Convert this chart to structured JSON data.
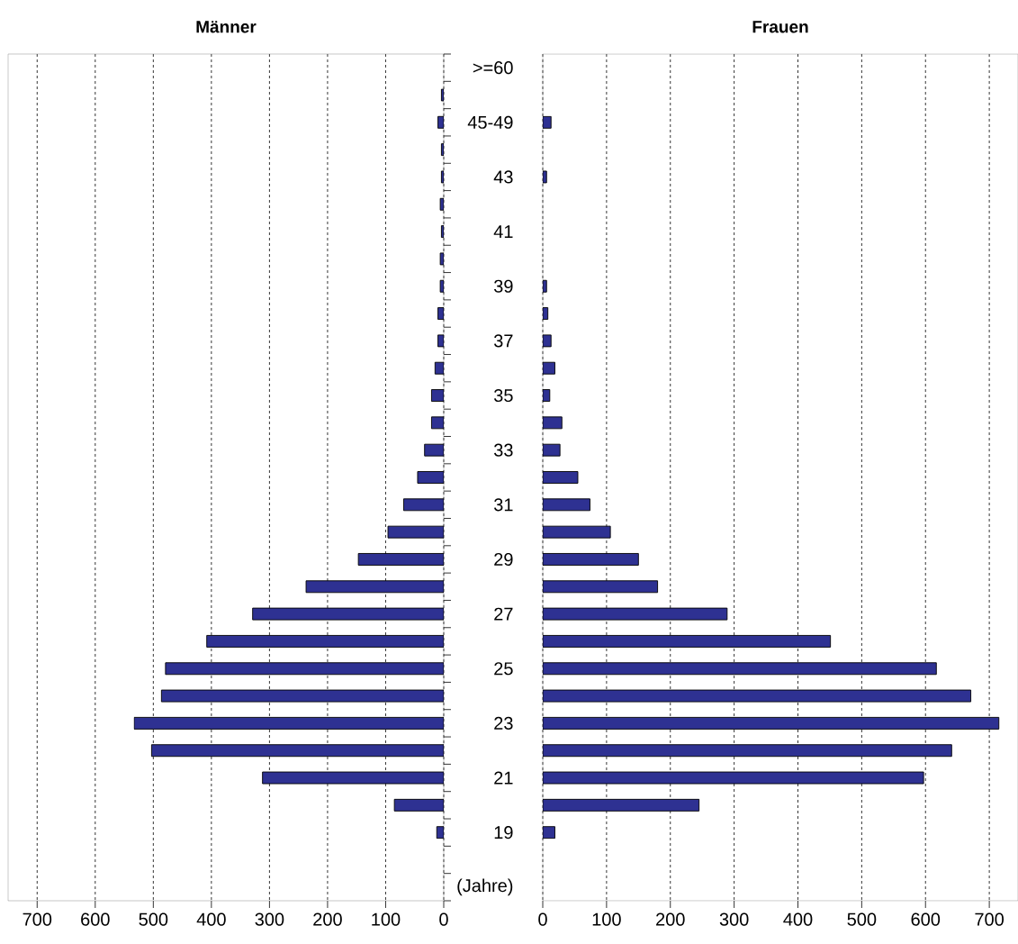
{
  "chart_data": [
    {
      "type": "bar",
      "orientation": "horizontal",
      "title": "Männer",
      "categories": [
        ">=60",
        null,
        "45-49",
        null,
        "43",
        null,
        "41",
        null,
        "39",
        null,
        "37",
        null,
        "35",
        null,
        "33",
        null,
        "31",
        null,
        "29",
        null,
        "27",
        null,
        "25",
        null,
        "23",
        null,
        "21",
        null,
        "19",
        null,
        "(Jahre)"
      ],
      "values": [
        null,
        4,
        10,
        4,
        4,
        6,
        4,
        6,
        6,
        10,
        10,
        15,
        21,
        21,
        33,
        45,
        69,
        96,
        147,
        237,
        329,
        408,
        479,
        486,
        533,
        503,
        312,
        85,
        12,
        null,
        null
      ],
      "color": "#2e3192",
      "xlim": [
        750,
        0
      ],
      "xticks": [
        0,
        100,
        200,
        300,
        400,
        500,
        600,
        700
      ],
      "grid": "x"
    },
    {
      "type": "bar",
      "orientation": "horizontal",
      "title": "Frauen",
      "values": [
        null,
        null,
        13,
        null,
        6,
        null,
        null,
        null,
        6,
        8,
        13,
        19,
        11,
        30,
        27,
        55,
        74,
        106,
        150,
        180,
        289,
        451,
        617,
        671,
        715,
        641,
        597,
        245,
        19,
        null,
        null
      ],
      "color": "#2e3192",
      "xlim": [
        0,
        745
      ],
      "xticks": [
        0,
        100,
        200,
        300,
        400,
        500,
        600,
        700
      ],
      "grid": "x",
      "tick_labels": "x"
    }
  ]
}
